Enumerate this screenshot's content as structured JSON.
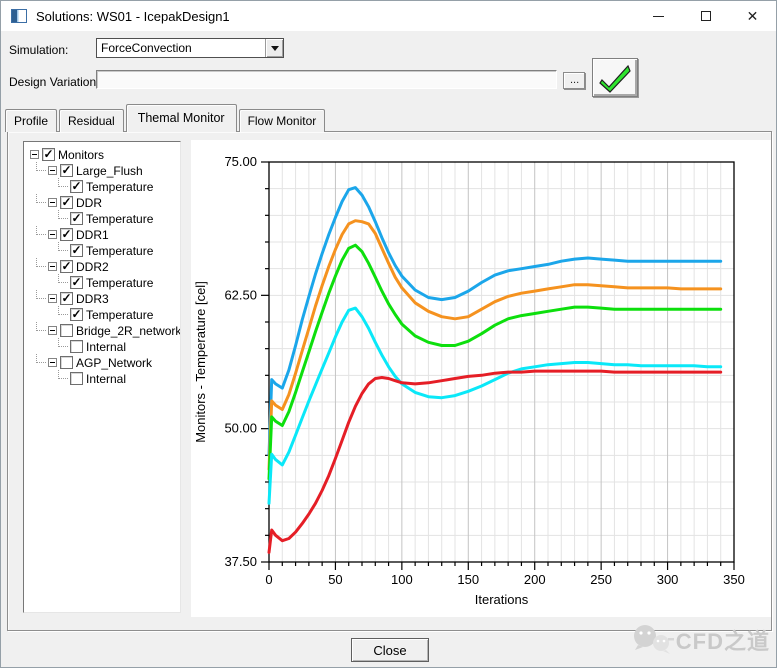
{
  "window": {
    "title": "Solutions: WS01 - IcepakDesign1"
  },
  "icons": {
    "minimize": "minimize-line",
    "maximize": "maximize-box",
    "close": "✕",
    "dropdown": "▼",
    "apply_check": "green-checkmark",
    "tree_expander": "−",
    "checkbox_check": "✓"
  },
  "form": {
    "simulation_label": "Simulation:",
    "simulation_value": "ForceConvection",
    "design_variation_label": "Design Variation:",
    "design_variation_value": "",
    "browse_button": "..."
  },
  "tabs": [
    {
      "label": "Profile",
      "active": false
    },
    {
      "label": "Residual",
      "active": false
    },
    {
      "label": "Themal Monitor",
      "active": true
    },
    {
      "label": "Flow Monitor",
      "active": false
    }
  ],
  "tree": {
    "items": [
      {
        "label": "Monitors",
        "level": 0,
        "expander": true,
        "checked": true
      },
      {
        "label": "Large_Flush",
        "level": 1,
        "expander": true,
        "checked": true
      },
      {
        "label": "Temperature",
        "level": 2,
        "expander": false,
        "checked": true
      },
      {
        "label": "DDR",
        "level": 1,
        "expander": true,
        "checked": true
      },
      {
        "label": "Temperature",
        "level": 2,
        "expander": false,
        "checked": true
      },
      {
        "label": "DDR1",
        "level": 1,
        "expander": true,
        "checked": true
      },
      {
        "label": "Temperature",
        "level": 2,
        "expander": false,
        "checked": true
      },
      {
        "label": "DDR2",
        "level": 1,
        "expander": true,
        "checked": true
      },
      {
        "label": "Temperature",
        "level": 2,
        "expander": false,
        "checked": true
      },
      {
        "label": "DDR3",
        "level": 1,
        "expander": true,
        "checked": true
      },
      {
        "label": "Temperature",
        "level": 2,
        "expander": false,
        "checked": true
      },
      {
        "label": "Bridge_2R_network",
        "level": 1,
        "expander": true,
        "checked": false
      },
      {
        "label": "Internal",
        "level": 2,
        "expander": false,
        "checked": false
      },
      {
        "label": "AGP_Network",
        "level": 1,
        "expander": true,
        "checked": false
      },
      {
        "label": "Internal",
        "level": 2,
        "expander": false,
        "checked": false
      }
    ]
  },
  "chart_data": {
    "type": "line",
    "title": "",
    "xlabel": "Iterations",
    "ylabel": "Monitors - Temperature [cel]",
    "xlim": [
      0,
      350
    ],
    "ylim": [
      37.5,
      75
    ],
    "x_major_step": 50,
    "x_minor_step": 10,
    "y_major_step": 12.5,
    "y_minor_step": 2.5,
    "x_tick_labels": [
      "0",
      "50",
      "100",
      "150",
      "200",
      "250",
      "300",
      "350"
    ],
    "y_tick_labels": [
      "75.00",
      "62.50",
      "50.00",
      "37.50"
    ],
    "grid": true,
    "legend": "none",
    "x": [
      0,
      2,
      5,
      10,
      15,
      20,
      25,
      30,
      35,
      40,
      45,
      50,
      55,
      60,
      65,
      70,
      75,
      80,
      85,
      90,
      95,
      100,
      110,
      120,
      130,
      140,
      150,
      160,
      170,
      180,
      190,
      200,
      210,
      220,
      230,
      240,
      250,
      260,
      270,
      280,
      290,
      300,
      310,
      320,
      330,
      340
    ],
    "series": [
      {
        "name": "Large_Flush Temperature",
        "color": "#1ba6ea",
        "values": [
          47.5,
          54.6,
          54.2,
          53.8,
          55.5,
          57.8,
          60.2,
          62.4,
          64.5,
          66.4,
          68.2,
          69.8,
          71.3,
          72.4,
          72.6,
          71.9,
          70.8,
          69.4,
          67.9,
          66.5,
          65.3,
          64.3,
          63.0,
          62.3,
          62.1,
          62.3,
          62.9,
          63.7,
          64.4,
          64.8,
          65.0,
          65.2,
          65.4,
          65.7,
          65.9,
          66.0,
          65.9,
          65.8,
          65.7,
          65.7,
          65.7,
          65.7,
          65.7,
          65.7,
          65.7,
          65.7
        ]
      },
      {
        "name": "DDR Temperature",
        "color": "#f5921f",
        "values": [
          46.2,
          52.6,
          52.2,
          51.8,
          53.2,
          55.2,
          57.3,
          59.4,
          61.5,
          63.4,
          65.2,
          66.8,
          68.2,
          69.2,
          69.5,
          69.4,
          69.2,
          68.3,
          66.9,
          65.5,
          64.2,
          63.2,
          61.8,
          61.0,
          60.5,
          60.3,
          60.5,
          61.2,
          61.9,
          62.4,
          62.7,
          62.9,
          63.1,
          63.3,
          63.5,
          63.5,
          63.4,
          63.3,
          63.2,
          63.2,
          63.2,
          63.2,
          63.1,
          63.1,
          63.1,
          63.1
        ]
      },
      {
        "name": "DDR1 Temperature",
        "color": "#0ddf0d",
        "values": [
          45.3,
          51.1,
          50.7,
          50.3,
          51.6,
          53.4,
          55.3,
          57.2,
          59.1,
          60.9,
          62.7,
          64.3,
          65.8,
          66.9,
          67.2,
          66.6,
          65.5,
          64.2,
          62.9,
          61.7,
          60.7,
          59.8,
          58.7,
          58.1,
          57.8,
          57.8,
          58.2,
          58.9,
          59.7,
          60.3,
          60.6,
          60.8,
          61.0,
          61.2,
          61.4,
          61.4,
          61.3,
          61.2,
          61.2,
          61.2,
          61.2,
          61.2,
          61.2,
          61.2,
          61.2,
          61.2
        ]
      },
      {
        "name": "DDR2 Temperature",
        "color": "#0ae8f8",
        "values": [
          43.0,
          47.6,
          47.1,
          46.6,
          47.8,
          49.4,
          51.0,
          52.6,
          54.1,
          55.6,
          57.1,
          58.6,
          60.0,
          61.1,
          61.3,
          60.5,
          59.4,
          58.1,
          56.9,
          55.8,
          54.9,
          54.2,
          53.4,
          53.0,
          52.9,
          53.1,
          53.5,
          54.0,
          54.6,
          55.2,
          55.6,
          55.8,
          56.0,
          56.1,
          56.2,
          56.2,
          56.1,
          56.0,
          56.0,
          55.9,
          55.9,
          55.9,
          55.9,
          55.9,
          55.8,
          55.8
        ]
      },
      {
        "name": "DDR3 Temperature",
        "color": "#e51e26",
        "values": [
          38.4,
          40.5,
          40.0,
          39.5,
          39.7,
          40.3,
          41.1,
          42.0,
          43.0,
          44.2,
          45.6,
          47.2,
          48.9,
          50.6,
          52.1,
          53.3,
          54.2,
          54.7,
          54.8,
          54.7,
          54.5,
          54.3,
          54.2,
          54.3,
          54.5,
          54.7,
          54.9,
          55.0,
          55.2,
          55.3,
          55.3,
          55.4,
          55.4,
          55.4,
          55.4,
          55.4,
          55.4,
          55.3,
          55.3,
          55.3,
          55.3,
          55.3,
          55.3,
          55.3,
          55.3,
          55.3
        ]
      }
    ],
    "axis_color": "#000000",
    "grid_minor_color": "#e3e3e3",
    "grid_major_color": "#c4c4c4"
  },
  "footer": {
    "close_button": "Close",
    "watermark_text": "CFD之道"
  }
}
